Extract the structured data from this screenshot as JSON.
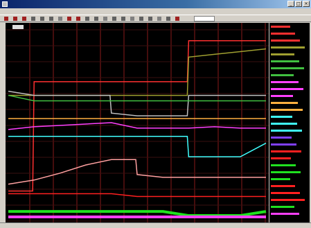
{
  "window": {
    "title": "",
    "minimize": "_",
    "maximize": "□",
    "close": "×"
  },
  "menu": [],
  "toolbar": {
    "button_icons": [
      "open-icon",
      "save-icon",
      "print-icon",
      "cut-icon",
      "copy-icon",
      "paste-icon",
      "undo-icon",
      "zoom-in-icon",
      "zoom-out-icon",
      "cursor-icon",
      "marker-icon",
      "pan-icon",
      "fit-icon",
      "grid-icon",
      "axis-icon",
      "color-icon",
      "measure-icon",
      "refresh-icon",
      "settings-icon",
      "help-icon"
    ],
    "field_value": ""
  },
  "plot": {
    "zoom_badge": "",
    "corner_label": "",
    "grid_color": "#8a1a1a",
    "background": "#000000"
  },
  "status": {
    "text": ""
  },
  "chart_data": {
    "type": "line",
    "x": [
      0,
      1,
      2,
      3,
      4,
      5,
      6,
      7,
      8,
      9,
      10
    ],
    "grid": true,
    "legend_position": "right",
    "series": [
      {
        "color": "#ff3030",
        "values": [
          2,
          10,
          10,
          10,
          10,
          10,
          10,
          13,
          13,
          13,
          13
        ]
      },
      {
        "color": "#a0a030",
        "values": [
          9,
          9,
          9,
          9,
          9,
          9,
          9,
          11.8,
          12,
          12.2,
          12.4
        ]
      },
      {
        "color": "#c0c0c0",
        "values": [
          9.3,
          9,
          9,
          9,
          7.7,
          7.5,
          7.5,
          9,
          9,
          9,
          9
        ]
      },
      {
        "color": "#40c040",
        "values": [
          9,
          8.6,
          8.6,
          8.6,
          8.6,
          8.6,
          8.6,
          8.6,
          8.6,
          8.6,
          8.6
        ]
      },
      {
        "color": "#ff40ff",
        "values": [
          6.5,
          6.7,
          6.8,
          6.9,
          7,
          6.6,
          6.6,
          6.6,
          6.7,
          6.6,
          6.6
        ]
      },
      {
        "color": "#ffb040",
        "values": [
          7.3,
          7.3,
          7.3,
          7.3,
          7.3,
          7.3,
          7.3,
          7.3,
          7.3,
          7.3,
          7.3
        ]
      },
      {
        "color": "#40ffff",
        "values": [
          6,
          6,
          6,
          6,
          6,
          6,
          6,
          4.5,
          4.5,
          4.5,
          5.5
        ]
      },
      {
        "color": "#ffa0a0",
        "values": [
          2.5,
          2.8,
          3.3,
          3.9,
          4.3,
          3.2,
          3,
          3,
          3,
          3,
          3
        ]
      },
      {
        "color": "#ff2020",
        "values": [
          1.8,
          1.8,
          1.8,
          1.8,
          1.8,
          1.6,
          1.6,
          1.6,
          1.6,
          1.6,
          1.6
        ]
      },
      {
        "color": "#20e020",
        "values": [
          0.5,
          0.5,
          0.5,
          0.5,
          0.5,
          0.5,
          0.5,
          0.2,
          0.2,
          0.2,
          0.5
        ]
      },
      {
        "color": "#ff40ff",
        "values": [
          0.1,
          0.1,
          0.1,
          0.1,
          0.1,
          0.1,
          0.1,
          0.1,
          0.1,
          0.1,
          0.1
        ]
      }
    ],
    "ylim": [
      0,
      14
    ]
  },
  "legend": {
    "colors": [
      "#ff3030",
      "#ff3030",
      "#ff3030",
      "#a0a030",
      "#a0a030",
      "#40c040",
      "#40c040",
      "#40c040",
      "#ff40ff",
      "#ff40ff",
      "#ff40ff",
      "#ffb040",
      "#ffb040",
      "#40ffff",
      "#40ffff",
      "#40ffff",
      "#8040ff",
      "#8040ff",
      "#ff2020",
      "#ff2020",
      "#20e020",
      "#20e020",
      "#20e020",
      "#ff2020",
      "#ff2020",
      "#ff2020",
      "#20e020",
      "#ff40ff"
    ]
  }
}
